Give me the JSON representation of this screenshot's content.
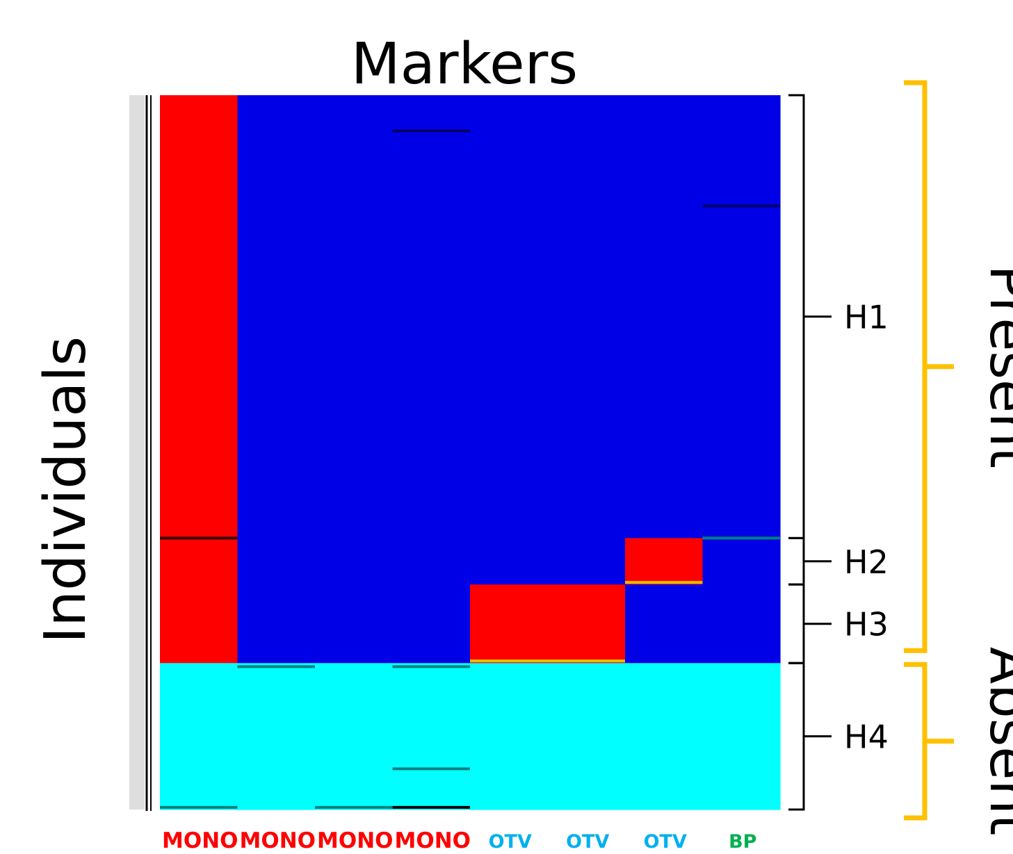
{
  "chart_data": {
    "type": "heatmap",
    "title": "Markers",
    "ylabel": "Individuals",
    "markers": [
      {
        "label": "MONO",
        "color": "#ff0000"
      },
      {
        "label": "MONO",
        "color": "#ff0000"
      },
      {
        "label": "MONO",
        "color": "#ff0000"
      },
      {
        "label": "MONO",
        "color": "#ff0000"
      },
      {
        "label": "OTV",
        "color": "#00b0f0"
      },
      {
        "label": "OTV",
        "color": "#00b0f0"
      },
      {
        "label": "OTV",
        "color": "#00b0f0"
      },
      {
        "label": "BP",
        "color": "#00b050"
      }
    ],
    "state_colors": {
      "red": "#ff0000",
      "blue": "#0000e6",
      "cyan": "#00ffff"
    },
    "groups": [
      {
        "label": "H1",
        "rows": [
          0,
          0.62
        ],
        "cells": [
          "red",
          "blue",
          "blue",
          "blue",
          "blue",
          "blue",
          "blue",
          "blue"
        ]
      },
      {
        "label": "H2",
        "rows": [
          0.62,
          0.685
        ],
        "cells": [
          "red",
          "blue",
          "blue",
          "blue",
          "blue",
          "blue",
          "red",
          "blue"
        ]
      },
      {
        "label": "H3",
        "rows": [
          0.685,
          0.795
        ],
        "cells": [
          "red",
          "blue",
          "blue",
          "blue",
          "red",
          "red",
          "blue",
          "blue"
        ]
      },
      {
        "label": "H4",
        "rows": [
          0.795,
          1.0
        ],
        "cells": [
          "cyan",
          "cyan",
          "cyan",
          "cyan",
          "cyan",
          "cyan",
          "cyan",
          "cyan"
        ]
      }
    ],
    "separator_lines": [
      {
        "cols": [
          3,
          4
        ],
        "row": 0.05,
        "color": "#000066"
      },
      {
        "cols": [
          7,
          8
        ],
        "row": 0.155,
        "color": "#000066"
      },
      {
        "cols": [
          0,
          1
        ],
        "row": 0.62,
        "color": "#330000"
      },
      {
        "cols": [
          7,
          8
        ],
        "row": 0.62,
        "color": "#008080"
      },
      {
        "cols": [
          6,
          7
        ],
        "row": 0.682,
        "color": "#e6c000"
      },
      {
        "cols": [
          4,
          6
        ],
        "row": 0.792,
        "color": "#e6c000"
      },
      {
        "cols": [
          1,
          2
        ],
        "row": 0.8,
        "color": "#008080"
      },
      {
        "cols": [
          3,
          4
        ],
        "row": 0.8,
        "color": "#008080"
      },
      {
        "cols": [
          3,
          4
        ],
        "row": 0.943,
        "color": "#008080"
      },
      {
        "cols": [
          0,
          1
        ],
        "row": 0.997,
        "color": "#008080"
      },
      {
        "cols": [
          2,
          3
        ],
        "row": 0.997,
        "color": "#008080"
      },
      {
        "cols": [
          3,
          4
        ],
        "row": 0.997,
        "color": "#000000"
      }
    ],
    "categories": [
      {
        "label": "Present",
        "groups": [
          "H1",
          "H2",
          "H3"
        ],
        "color": "#ffc000"
      },
      {
        "label": "Absent",
        "groups": [
          "H4"
        ],
        "color": "#ffc000"
      }
    ]
  }
}
